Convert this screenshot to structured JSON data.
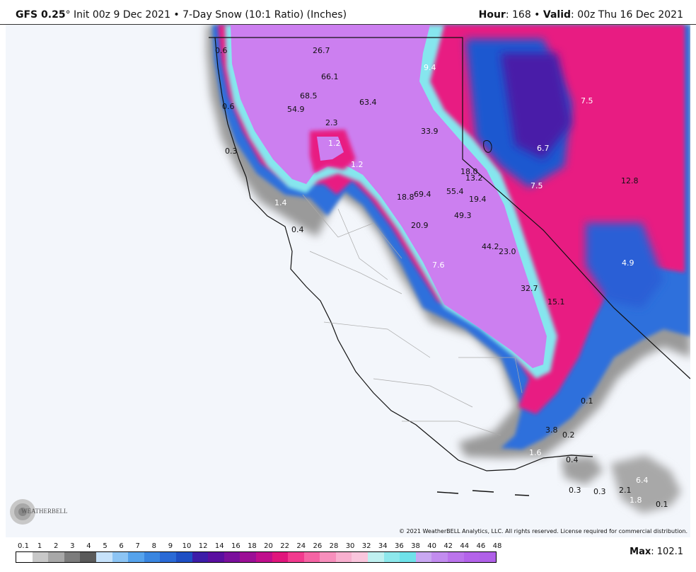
{
  "header": {
    "model": "GFS 0.25",
    "degree": "°",
    "init": " Init 00z 9 Dec 2021 • 7-Day Snow (10:1 Ratio) (Inches)",
    "hour_label": "Hour",
    "hour_value": ": 168 • ",
    "valid_label": "Valid",
    "valid_value": ": 00z Thu 16 Dec 2021"
  },
  "map_labels": [
    {
      "text": "0.6",
      "c": "d"
    },
    {
      "text": "26.7",
      "c": "d"
    },
    {
      "text": "9.4",
      "c": "w"
    },
    {
      "text": "66.1",
      "c": "d"
    },
    {
      "text": "68.5",
      "c": "d"
    },
    {
      "text": "63.4",
      "c": "d"
    },
    {
      "text": "0.6",
      "c": "d"
    },
    {
      "text": "54.9",
      "c": "d"
    },
    {
      "text": "7.5",
      "c": "w"
    },
    {
      "text": "2.3",
      "c": "d"
    },
    {
      "text": "33.9",
      "c": "d"
    },
    {
      "text": "1.2",
      "c": "w"
    },
    {
      "text": "6.7",
      "c": "w"
    },
    {
      "text": "0.3",
      "c": "d"
    },
    {
      "text": "1.2",
      "c": "w"
    },
    {
      "text": "18.0",
      "c": "d"
    },
    {
      "text": "13.2",
      "c": "d"
    },
    {
      "text": "7.5",
      "c": "w"
    },
    {
      "text": "12.8",
      "c": "d"
    },
    {
      "text": "55.4",
      "c": "d"
    },
    {
      "text": "18.8",
      "c": "d"
    },
    {
      "text": "69.4",
      "c": "d"
    },
    {
      "text": "19.4",
      "c": "d"
    },
    {
      "text": "1.4",
      "c": "w"
    },
    {
      "text": "49.3",
      "c": "d"
    },
    {
      "text": "0.4",
      "c": "d"
    },
    {
      "text": "20.9",
      "c": "d"
    },
    {
      "text": "44.2",
      "c": "d"
    },
    {
      "text": "23.0",
      "c": "d"
    },
    {
      "text": "4.9",
      "c": "w"
    },
    {
      "text": "7.6",
      "c": "w"
    },
    {
      "text": "32.7",
      "c": "d"
    },
    {
      "text": "15.1",
      "c": "d"
    },
    {
      "text": "0.1",
      "c": "d"
    },
    {
      "text": "3.8",
      "c": "d"
    },
    {
      "text": "0.2",
      "c": "d"
    },
    {
      "text": "1.6",
      "c": "w"
    },
    {
      "text": "0.4",
      "c": "d"
    },
    {
      "text": "6.4",
      "c": "w"
    },
    {
      "text": "0.3",
      "c": "d"
    },
    {
      "text": "0.3",
      "c": "d"
    },
    {
      "text": "2.1",
      "c": "d"
    },
    {
      "text": "1.8",
      "c": "w"
    },
    {
      "text": "0.1",
      "c": "d"
    }
  ],
  "copyright": "© 2021 WeatherBELL Analytics, LLC. All rights reserved. License required for commercial distribution.",
  "logo_text": "WEATHERBELL",
  "legend": {
    "ticks": [
      "0.1",
      "1",
      "2",
      "3",
      "4",
      "5",
      "6",
      "7",
      "8",
      "9",
      "10",
      "12",
      "14",
      "16",
      "18",
      "20",
      "22",
      "24",
      "26",
      "28",
      "30",
      "32",
      "34",
      "36",
      "38",
      "40",
      "42",
      "44",
      "46",
      "48"
    ],
    "colors": [
      "#ffffff",
      "#c8c8c8",
      "#a8a8a8",
      "#7c7c7c",
      "#5a5a5a",
      "#c6e2fb",
      "#8cc4f4",
      "#56a3ec",
      "#3a86e0",
      "#2a6ad6",
      "#1e4fc4",
      "#3d1da8",
      "#5a0fa0",
      "#7a0f9c",
      "#9c0f96",
      "#c00e8c",
      "#e0157c",
      "#f23a8e",
      "#f564a4",
      "#f78fbc",
      "#f8b0cf",
      "#fac6dd",
      "#bff0f0",
      "#8de8ec",
      "#6fe2ea",
      "#c9a8f2",
      "#c28cef",
      "#bb74ec",
      "#b463ea",
      "#b060e8"
    ],
    "max_label": "Max",
    "max_value": ": 102.1"
  }
}
